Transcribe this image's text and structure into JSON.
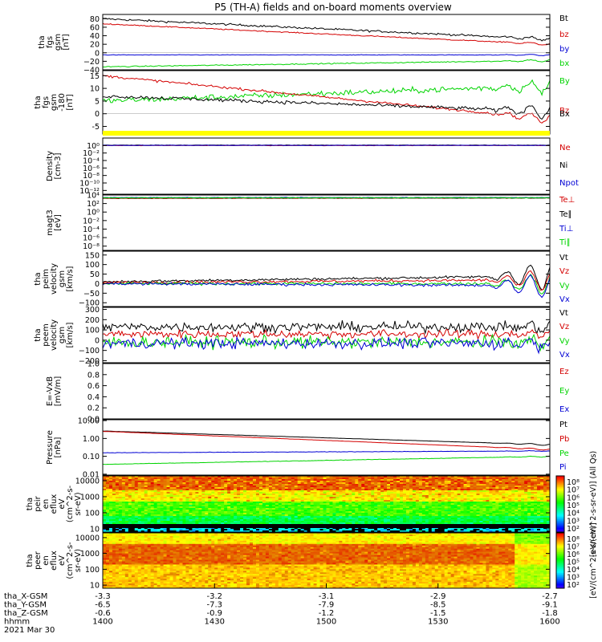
{
  "title": "P5 (TH-A) fields and on-board moments overview",
  "panels": [
    {
      "id": "fgs_gsm",
      "ylabel": [
        "tha",
        "fgs",
        "gsm",
        "[nT]"
      ],
      "type": "line",
      "ylim": [
        -40,
        90
      ],
      "ticks": [
        "80",
        "60",
        "40",
        "20",
        "0",
        "−20",
        "−40"
      ],
      "tickvals": [
        80,
        60,
        40,
        20,
        0,
        -20,
        -40
      ],
      "series": [
        {
          "name": "Bt",
          "color": "#000000",
          "start": 80,
          "end": 32,
          "noise": 2,
          "wiggle_end": 4
        },
        {
          "name": "bz",
          "color": "#d40000",
          "start": 68,
          "end": 20,
          "noise": 1,
          "wiggle_end": 3
        },
        {
          "name": "by",
          "color": "#0000d4",
          "start": -5,
          "end": -5,
          "noise": 0.5,
          "wiggle_end": 2
        },
        {
          "name": "bx",
          "color": "#00d400",
          "start": -33,
          "end": -18,
          "noise": 1,
          "wiggle_end": 3
        }
      ]
    },
    {
      "id": "fgs_gsm_180",
      "ylabel": [
        "tha",
        "fgs",
        "gsm",
        "-180",
        "[nT]"
      ],
      "type": "line",
      "ylim": [
        -8,
        17
      ],
      "ticks": [
        "15",
        "10",
        "5",
        "0",
        "-5"
      ],
      "tickvals": [
        15,
        10,
        5,
        0,
        -5
      ],
      "series": [
        {
          "name": "By",
          "color": "#00d400",
          "start": 5,
          "end": 11,
          "noise": 1,
          "wiggle_end": 3
        },
        {
          "name": "Bz",
          "color": "#d40000",
          "start": 15,
          "end": -2,
          "noise": 0.4,
          "wiggle_end": 2
        },
        {
          "name": "Bx",
          "color": "#000000",
          "start": 7,
          "end": 1,
          "noise": 0.6,
          "wiggle_end": 3
        }
      ]
    },
    {
      "id": "density",
      "ylabel": [
        "Density",
        "[cm-3]"
      ],
      "type": "log",
      "ylim": [
        -13,
        2
      ],
      "ticks": [
        "10⁰",
        "10⁻²",
        "10⁻⁴",
        "10⁻⁶",
        "10⁻⁸",
        "10⁻¹⁰",
        "10⁻¹²"
      ],
      "tickvals": [
        0,
        -2,
        -4,
        -6,
        -8,
        -10,
        -12
      ],
      "series": [
        {
          "name": "Ne",
          "color": "#d40000",
          "start": 0,
          "end": 0,
          "noise": 0.05,
          "wiggle_end": 0
        },
        {
          "name": "Ni",
          "color": "#000000",
          "start": 0.1,
          "end": 0.1,
          "noise": 0.05,
          "wiggle_end": 0
        },
        {
          "name": "Npot",
          "color": "#0000d4",
          "start": 0.05,
          "end": 0.05,
          "noise": 0.05,
          "wiggle_end": 0
        }
      ]
    },
    {
      "id": "moments_temp",
      "ylabel": [
        "magt3",
        "[eV]"
      ],
      "type": "log",
      "ylim": [
        -9,
        4
      ],
      "ticks": [
        "10⁴",
        "10²",
        "10⁰",
        "10⁻²",
        "10⁻⁴",
        "10⁻⁶",
        "10⁻⁸"
      ],
      "tickvals": [
        4,
        2,
        0,
        -2,
        -4,
        -6,
        -8
      ],
      "series": [
        {
          "name": "Te⊥",
          "color": "#d40000",
          "start": 3.2,
          "end": 3.3,
          "noise": 0.05,
          "wiggle_end": 0
        },
        {
          "name": "Te∥",
          "color": "#000000",
          "start": 3.3,
          "end": 3.3,
          "noise": 0.05,
          "wiggle_end": 0
        },
        {
          "name": "Ti⊥",
          "color": "#0000d4",
          "start": 3.4,
          "end": 3.4,
          "noise": 0.05,
          "wiggle_end": 0
        },
        {
          "name": "Ti∥",
          "color": "#00d400",
          "start": 3.35,
          "end": 3.35,
          "noise": 0.05,
          "wiggle_end": 0
        }
      ]
    },
    {
      "id": "peim_velocity",
      "ylabel": [
        "tha",
        "peim",
        "velocity",
        "gsm",
        "[km/s]"
      ],
      "type": "line",
      "ylim": [
        -120,
        170
      ],
      "ticks": [
        "150",
        "100",
        "50",
        "0",
        "−50",
        "−100"
      ],
      "tickvals": [
        150,
        100,
        50,
        0,
        -50,
        -100
      ],
      "series": [
        {
          "name": "Vt",
          "color": "#000000",
          "start": 10,
          "end": 40,
          "noise": 6,
          "wiggle_end": 80
        },
        {
          "name": "Vz",
          "color": "#d40000",
          "start": 5,
          "end": 20,
          "noise": 6,
          "wiggle_end": 60
        },
        {
          "name": "Vy",
          "color": "#00d400",
          "start": 0,
          "end": 0,
          "noise": 6,
          "wiggle_end": 60
        },
        {
          "name": "Vx",
          "color": "#0000d4",
          "start": 0,
          "end": -10,
          "noise": 6,
          "wiggle_end": 70
        }
      ]
    },
    {
      "id": "peem_velocity",
      "ylabel": [
        "tha",
        "peem",
        "velocity",
        "gsm",
        "[km/s]"
      ],
      "type": "line",
      "ylim": [
        -220,
        320
      ],
      "ticks": [
        "300",
        "200",
        "100",
        "0",
        "−100",
        "−200"
      ],
      "tickvals": [
        300,
        200,
        100,
        0,
        -100,
        -200
      ],
      "series": [
        {
          "name": "Vt",
          "color": "#000000",
          "start": 130,
          "end": 130,
          "noise": 40,
          "wiggle_end": 40
        },
        {
          "name": "Vz",
          "color": "#d40000",
          "start": 60,
          "end": 60,
          "noise": 35,
          "wiggle_end": 40
        },
        {
          "name": "Vy",
          "color": "#00d400",
          "start": -20,
          "end": -20,
          "noise": 50,
          "wiggle_end": 50
        },
        {
          "name": "Vx",
          "color": "#0000d4",
          "start": -30,
          "end": -30,
          "noise": 45,
          "wiggle_end": 50
        }
      ]
    },
    {
      "id": "efield",
      "ylabel": [
        "E=-VxB",
        "[mV/m]"
      ],
      "type": "empty",
      "ylim": [
        0,
        1
      ],
      "ticks": [
        "1.0",
        "0.8",
        "0.6",
        "0.4",
        "0.2",
        "0.0"
      ],
      "tickvals": [
        1,
        0.8,
        0.6,
        0.4,
        0.2,
        0
      ],
      "series": [
        {
          "name": "Ez",
          "color": "#d40000"
        },
        {
          "name": "Ey",
          "color": "#00d400"
        },
        {
          "name": "Ex",
          "color": "#0000d4"
        }
      ]
    },
    {
      "id": "pressure",
      "ylabel": [
        "Pressure",
        "[nPa]"
      ],
      "type": "log",
      "ylim": [
        -2.05,
        1.05
      ],
      "ticks": [
        "10.00",
        "1.00",
        "0.10",
        "0.01"
      ],
      "tickvals": [
        1,
        0,
        -1,
        -2
      ],
      "series": [
        {
          "name": "Pt",
          "color": "#000000",
          "start": 0.42,
          "end": -0.35,
          "noise": 0.005,
          "wiggle_end": 0.05
        },
        {
          "name": "Pb",
          "color": "#d40000",
          "start": 0.4,
          "end": -0.62,
          "noise": 0.005,
          "wiggle_end": 0.05
        },
        {
          "name": "Pe",
          "color": "#00d400",
          "start": -1.45,
          "end": -1.0,
          "noise": 0.01,
          "wiggle_end": 0.03
        },
        {
          "name": "Pi",
          "color": "#0000d4",
          "start": -0.8,
          "end": -0.7,
          "noise": 0.01,
          "wiggle_end": 0.02
        }
      ]
    },
    {
      "id": "peir_spec",
      "ylabel": [
        "tha",
        "peir",
        "en",
        "eflux",
        "eV",
        "(cm^2-s-",
        "sr-eV)"
      ],
      "type": "spectrogram",
      "ticks": [
        "10000",
        "1000",
        "100",
        "10"
      ],
      "tickvals": [
        4,
        3,
        2,
        1
      ],
      "ylim": [
        0.8,
        4.3
      ],
      "kind": "ion"
    },
    {
      "id": "peer_spec",
      "ylabel": [
        "tha",
        "peer",
        "en",
        "eflux",
        "eV",
        "(cm^2-s-",
        "sr-eV)"
      ],
      "type": "spectrogram",
      "ticks": [
        "10000",
        "1000",
        "100",
        "10"
      ],
      "tickvals": [
        4,
        3,
        2,
        1
      ],
      "ylim": [
        0.8,
        4.3
      ],
      "kind": "electron"
    }
  ],
  "colorbars": [
    {
      "ticks": [
        "10⁸",
        "10⁷",
        "10⁶",
        "10⁵",
        "10⁴",
        "10³",
        "10²"
      ],
      "label": "[eV/(cm^2-s-sr-eV)] (All Qs)"
    },
    {
      "ticks": [
        "10⁸",
        "10⁷",
        "10⁶",
        "10⁵",
        "10⁴",
        "10³",
        "10²"
      ],
      "label": "[eV/(cm^2-s-sr-eV)]"
    }
  ],
  "xaxis": {
    "rows": [
      {
        "name": "tha_X-GSM",
        "values": [
          "-3.3",
          "-3.2",
          "-3.1",
          "-2.9",
          "-2.7"
        ]
      },
      {
        "name": "tha_Y-GSM",
        "values": [
          "-6.5",
          "-7.3",
          "-7.9",
          "-8.5",
          "-9.1"
        ]
      },
      {
        "name": "tha_Z-GSM",
        "values": [
          "-0.6",
          "-0.9",
          "-1.2",
          "-1.5",
          "-1.8"
        ]
      },
      {
        "name": "hhmm",
        "values": [
          "1400",
          "1430",
          "1500",
          "1530",
          "1600"
        ]
      }
    ],
    "date": "2021 Mar 30"
  }
}
